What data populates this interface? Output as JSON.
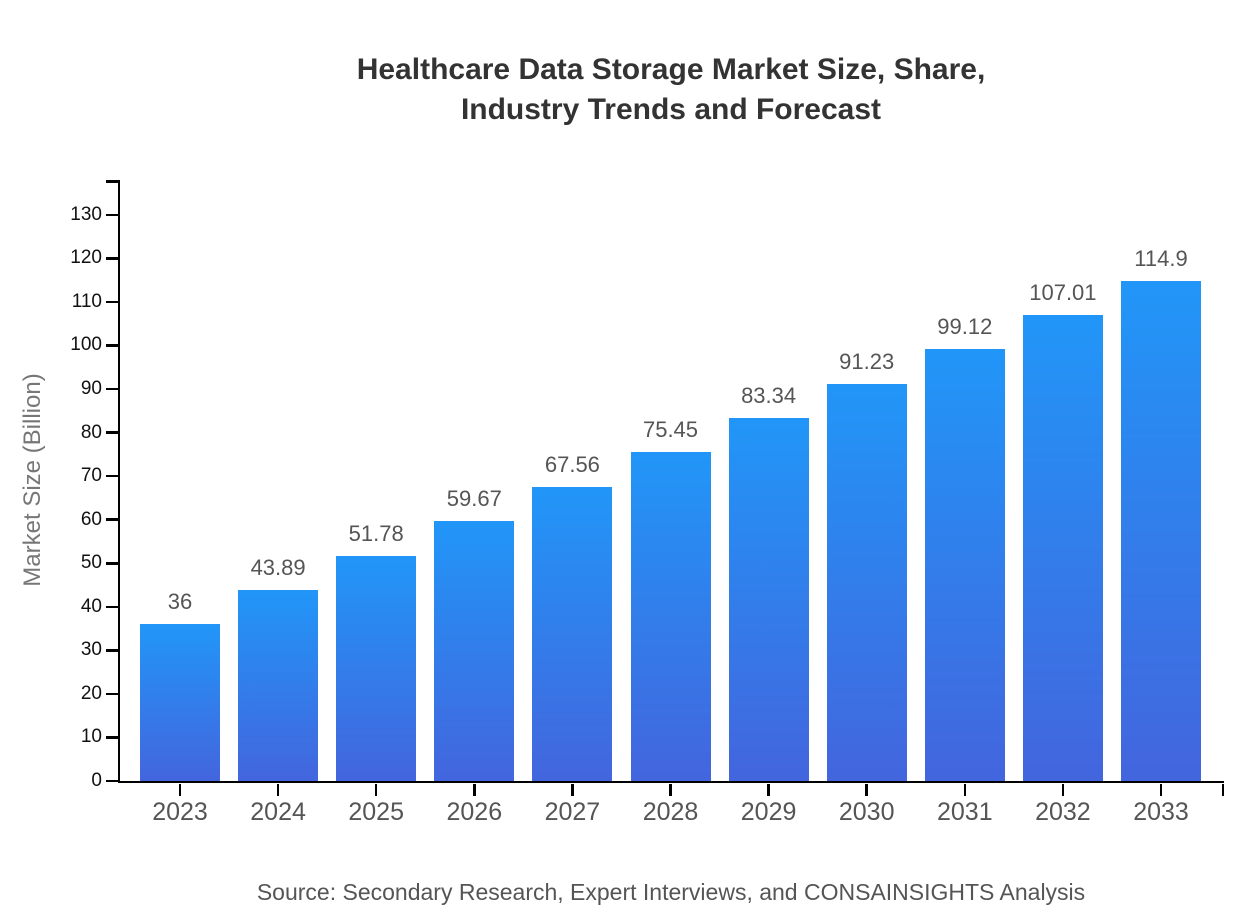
{
  "chart_data": {
    "type": "bar",
    "title": "Healthcare Data Storage Market Size, Share,\nIndustry Trends and Forecast",
    "title_line1": "Healthcare Data Storage Market Size, Share,",
    "title_line2": "Industry Trends and Forecast",
    "categories": [
      "2023",
      "2024",
      "2025",
      "2026",
      "2027",
      "2028",
      "2029",
      "2030",
      "2031",
      "2032",
      "2033"
    ],
    "values": [
      36,
      43.89,
      51.78,
      59.67,
      67.56,
      75.45,
      83.34,
      91.23,
      99.12,
      107.01,
      114.9
    ],
    "value_labels": [
      "36",
      "43.89",
      "51.78",
      "59.67",
      "67.56",
      "75.45",
      "83.34",
      "91.23",
      "99.12",
      "107.01",
      "114.9"
    ],
    "xlabel": "",
    "ylabel": "Market Size (Billion)",
    "ylim": [
      0,
      138
    ],
    "yticks": [
      0,
      10,
      20,
      30,
      40,
      50,
      60,
      70,
      80,
      90,
      100,
      110,
      120,
      130
    ],
    "grid": false,
    "legend": null,
    "source": "Source: Secondary Research, Expert Interviews, and CONSAINSIGHTS Analysis",
    "colors": {
      "bar_gradient_top": "#2196f8",
      "bar_gradient_bottom": "#4365dd",
      "axis": "#000000",
      "title_text": "#333333",
      "ytick_text": "#111111",
      "xtick_text": "#555555",
      "value_label_text": "#555555",
      "ylabel_text": "#777777",
      "source_text": "#555555",
      "background": "#ffffff"
    }
  }
}
